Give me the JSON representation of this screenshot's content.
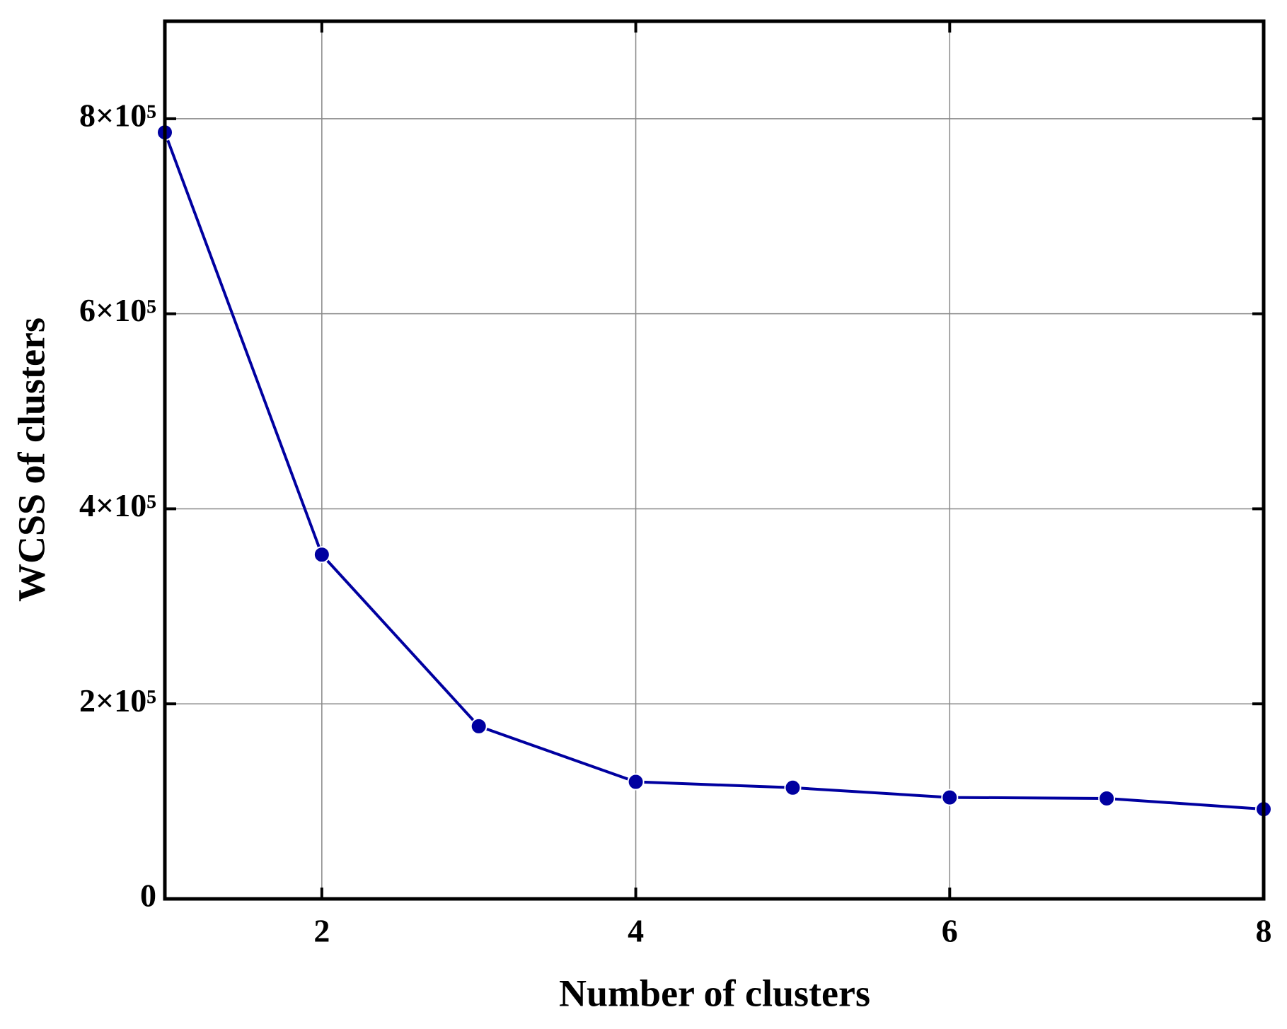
{
  "chart_data": {
    "type": "line",
    "x_label": "Number of clusters",
    "y_label": "WCSS of clusters",
    "x": [
      1,
      2,
      3,
      4,
      5,
      6,
      7,
      8
    ],
    "series": [
      {
        "color": "#0000a0",
        "values": [
          786000,
          353000,
          177000,
          120000,
          114000,
          104000,
          103000,
          92000
        ]
      }
    ],
    "xlim": [
      1,
      8
    ],
    "xticks": [
      2,
      4,
      6,
      8
    ],
    "ylim": [
      0,
      900000
    ],
    "yticks": [
      0,
      {
        "value": 200000,
        "label": "2×10⁵"
      },
      {
        "value": 400000,
        "label": "4×10⁵"
      },
      {
        "value": 600000,
        "label": "6×10⁵"
      },
      {
        "value": 800000,
        "label": "8×10⁵"
      }
    ],
    "grid": true
  }
}
